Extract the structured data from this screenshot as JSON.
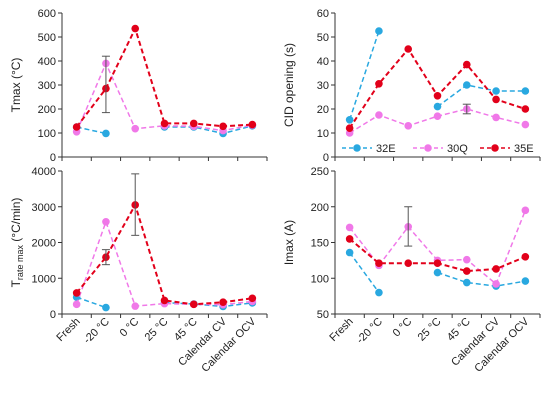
{
  "categories": [
    "Fresh",
    "-20 °C",
    "0 °C",
    "25 °C",
    "45 °C",
    "Calendar CV",
    "Calendar OCV"
  ],
  "colors": {
    "32E": "#29a8e0",
    "30Q": "#f078e8",
    "35E": "#e2001a",
    "errorbar": "#555555",
    "axis": "#333333"
  },
  "legend": [
    {
      "name": "32E",
      "color": "#29a8e0"
    },
    {
      "name": "30Q",
      "color": "#f078e8"
    },
    {
      "name": "35E",
      "color": "#e2001a"
    }
  ],
  "chart_data": [
    {
      "type": "line",
      "id": "tmax",
      "ylabel": "Tmax (°C)",
      "ylim": [
        0,
        600
      ],
      "yticks": [
        0,
        100,
        200,
        300,
        400,
        500,
        600
      ],
      "series": [
        {
          "name": "32E",
          "values": [
            125,
            98,
            null,
            125,
            125,
            98,
            130
          ]
        },
        {
          "name": "30Q",
          "values": [
            105,
            390,
            118,
            130,
            128,
            110,
            133
          ]
        },
        {
          "name": "35E",
          "values": [
            125,
            285,
            535,
            140,
            140,
            128,
            135
          ]
        }
      ],
      "errorbars": [
        {
          "series": "35E",
          "index": 1,
          "low": 185,
          "high": 420
        }
      ]
    },
    {
      "type": "line",
      "id": "cid",
      "ylabel": "CID opening (s)",
      "ylim": [
        0,
        60
      ],
      "yticks": [
        0,
        10,
        20,
        30,
        40,
        50,
        60
      ],
      "series": [
        {
          "name": "32E",
          "values": [
            15.5,
            52.5,
            null,
            21,
            30,
            27.5,
            27.5
          ]
        },
        {
          "name": "30Q",
          "values": [
            10,
            17.5,
            13,
            17,
            20,
            16.5,
            13.5
          ]
        },
        {
          "name": "35E",
          "values": [
            12,
            30.5,
            45,
            25.5,
            38.5,
            24,
            20
          ]
        }
      ],
      "errorbars": [
        {
          "series": "30Q",
          "index": 4,
          "low": 18,
          "high": 22
        }
      ]
    },
    {
      "type": "line",
      "id": "trate",
      "ylabel": "T rate max (°C/min)",
      "ylabel_main": "T",
      "ylabel_sub": "rate max",
      "ylabel_unit": " (°C/min)",
      "ylim": [
        0,
        4000
      ],
      "yticks": [
        0,
        1000,
        2000,
        3000,
        4000
      ],
      "series": [
        {
          "name": "32E",
          "values": [
            470,
            180,
            null,
            320,
            280,
            210,
            310
          ]
        },
        {
          "name": "30Q",
          "values": [
            270,
            2580,
            220,
            290,
            270,
            260,
            350
          ]
        },
        {
          "name": "35E",
          "values": [
            590,
            1590,
            3050,
            380,
            270,
            330,
            440
          ]
        }
      ],
      "errorbars": [
        {
          "series": "35E",
          "index": 1,
          "low": 1380,
          "high": 1800
        },
        {
          "series": "35E",
          "index": 2,
          "low": 2200,
          "high": 3920
        }
      ]
    },
    {
      "type": "line",
      "id": "imax",
      "ylabel": "Imax (A)",
      "ylim": [
        50,
        250
      ],
      "yticks": [
        50,
        100,
        150,
        200,
        250
      ],
      "series": [
        {
          "name": "32E",
          "values": [
            136,
            80,
            null,
            108,
            94,
            89,
            96
          ]
        },
        {
          "name": "30Q",
          "values": [
            171,
            118,
            172,
            125,
            126,
            92,
            195
          ]
        },
        {
          "name": "35E",
          "values": [
            155,
            121,
            121,
            121,
            110,
            113,
            130
          ]
        }
      ],
      "errorbars": [
        {
          "series": "30Q",
          "index": 2,
          "low": 145,
          "high": 200
        }
      ]
    }
  ]
}
